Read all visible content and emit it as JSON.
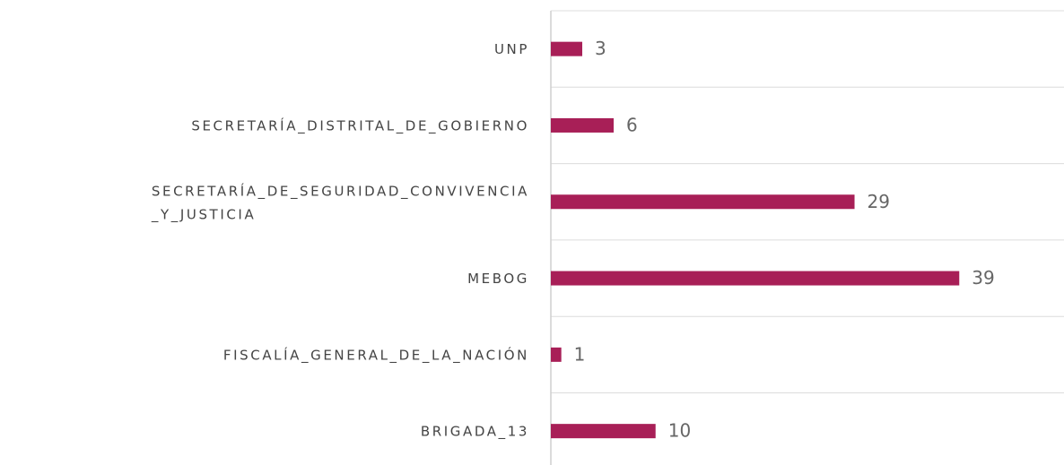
{
  "chart_data": {
    "type": "bar",
    "orientation": "horizontal",
    "categories": [
      "UNP",
      "SECRETARÍA_DISTRITAL_DE_GOBIERNO",
      "SECRETARÍA_DE_SEGURIDAD_CONVIVENCIA_Y_JUSTICIA",
      "MEBOG",
      "FISCALÍA_GENERAL_DE_LA_NACIÓN",
      "BRIGADA_13"
    ],
    "values": [
      3,
      6,
      29,
      39,
      1,
      10
    ],
    "color": "#a81f57",
    "xlim": [
      0,
      49
    ],
    "grid": true
  }
}
